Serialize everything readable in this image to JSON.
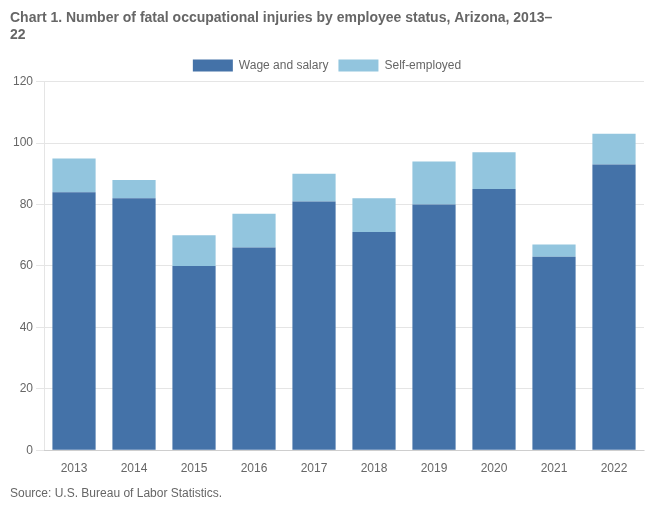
{
  "chart_data": {
    "type": "bar",
    "title": [
      "Chart 1. Number of fatal occupational injuries by employee status, Arizona, 2013–",
      "22"
    ],
    "annotations": [
      "Source: U.S. Bureau of Labor Statistics."
    ],
    "categories": [
      "2013",
      "2014",
      "2015",
      "2016",
      "2017",
      "2018",
      "2019",
      "2020",
      "2021",
      "2022"
    ],
    "series": [
      {
        "name": "Wage and salary",
        "color": "#4472a8",
        "values": [
          84,
          82,
          60,
          66,
          81,
          71,
          80,
          85,
          63,
          93
        ]
      },
      {
        "name": "Self-employed",
        "color": "#92c5de",
        "values": [
          11,
          6,
          10,
          11,
          9,
          11,
          14,
          12,
          4,
          10
        ]
      }
    ],
    "stacked": true,
    "ylim": [
      0,
      120
    ],
    "yticks": [
      0,
      20,
      40,
      60,
      80,
      100,
      120
    ],
    "grid": true,
    "legend": "top"
  }
}
